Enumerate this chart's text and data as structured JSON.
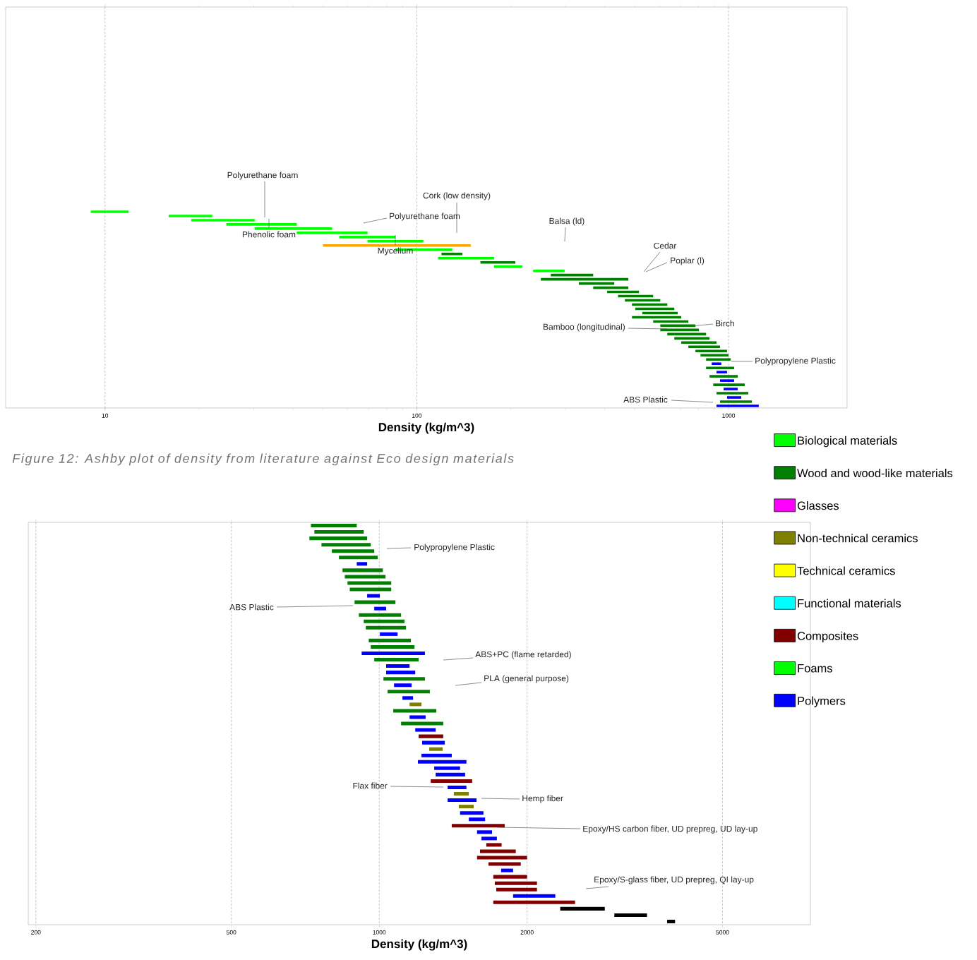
{
  "chart_data": [
    {
      "type": "bar",
      "orientation": "horizontal",
      "log": "x",
      "xlabel": "Density (kg/m^3)",
      "xlim": [
        4.8,
        2400
      ],
      "xticks": [
        10,
        100,
        1000
      ],
      "grid": "x",
      "tick_labels": "x",
      "annotations": [
        "Polyurethane foam",
        "Phenolic foam",
        "Cork (low density)",
        "Polyurethane foam",
        "Mycelium",
        "Balsa (ld)",
        "Cedar",
        "Poplar (l)",
        "Bamboo (longitudinal)",
        "Birch",
        "Polypropylene Plastic",
        "ABS Plastic",
        "Figure 12: Ashby plot of density from literature against Eco design materials"
      ],
      "categories": [
        null,
        null,
        null,
        null,
        null,
        null,
        null,
        null,
        null,
        null,
        null,
        null,
        null,
        null,
        null,
        null,
        null,
        null,
        null,
        null,
        null,
        null,
        null,
        null,
        null,
        null,
        null,
        null,
        null,
        null,
        null,
        null,
        null,
        null,
        null,
        null,
        null,
        null,
        null,
        null,
        null,
        null,
        null,
        null,
        null,
        null,
        null,
        null,
        null,
        null,
        null,
        null,
        null,
        null,
        null,
        null,
        null,
        null,
        null,
        null,
        null,
        null,
        null,
        null,
        null,
        null,
        null,
        null,
        null,
        null,
        null,
        null,
        null,
        null,
        null,
        null,
        null,
        null,
        null,
        null,
        null,
        null,
        null,
        null,
        null,
        null,
        null,
        null,
        null,
        null,
        null,
        null,
        null,
        null,
        null
      ],
      "series": [
        {
          "color": "#00ff00",
          "base": [
            null,
            null,
            null,
            null,
            null,
            null,
            null,
            null,
            null,
            null,
            null,
            null,
            null,
            null,
            null,
            null,
            null,
            null,
            null,
            null,
            null,
            null,
            null,
            null,
            null,
            null,
            null,
            null,
            null,
            null,
            null,
            null,
            null,
            null,
            null,
            null,
            null,
            null,
            null,
            null,
            null,
            null,
            null,
            null,
            null,
            null,
            null,
            null,
            9.0,
            16.0,
            18.9,
            24.5,
            30.2,
            41.2,
            56.4,
            69.5,
            null,
            85.5,
            null,
            117,
            null,
            177,
            236,
            null,
            null,
            null,
            null,
            null,
            null,
            null,
            null,
            null,
            null,
            null,
            null,
            null,
            null,
            null,
            null,
            null,
            null,
            null,
            null,
            null,
            null,
            null,
            null,
            null,
            null,
            null,
            null,
            null,
            null,
            null,
            null
          ],
          "values": [
            null,
            null,
            null,
            null,
            null,
            null,
            null,
            null,
            null,
            null,
            null,
            null,
            null,
            null,
            null,
            null,
            null,
            null,
            null,
            null,
            null,
            null,
            null,
            null,
            null,
            null,
            null,
            null,
            null,
            null,
            null,
            null,
            null,
            null,
            null,
            null,
            null,
            null,
            null,
            null,
            null,
            null,
            null,
            null,
            null,
            null,
            null,
            null,
            2.9,
            6.1,
            11.3,
            16.7,
            23.3,
            28.3,
            29.1,
            35.5,
            null,
            44.5,
            null,
            60,
            null,
            41,
            62,
            null,
            null,
            null,
            null,
            null,
            null,
            null,
            null,
            null,
            null,
            null,
            null,
            null,
            null,
            null,
            null,
            null,
            null,
            null,
            null,
            null,
            null,
            null,
            null,
            null,
            null,
            null,
            null,
            null,
            null,
            null,
            null
          ]
        },
        {
          "color": "#ffa500",
          "base": [
            null,
            null,
            null,
            null,
            null,
            null,
            null,
            null,
            null,
            null,
            null,
            null,
            null,
            null,
            null,
            null,
            null,
            null,
            null,
            null,
            null,
            null,
            null,
            null,
            null,
            null,
            null,
            null,
            null,
            null,
            null,
            null,
            null,
            null,
            null,
            null,
            null,
            null,
            null,
            null,
            null,
            null,
            null,
            null,
            null,
            null,
            null,
            null,
            null,
            null,
            null,
            null,
            null,
            null,
            null,
            null,
            50,
            null,
            null,
            null,
            null,
            null,
            null,
            null,
            null,
            null,
            null,
            null,
            null,
            null,
            null,
            null,
            null,
            null,
            null,
            null,
            null,
            null,
            null,
            null,
            null,
            null,
            null,
            null,
            null,
            null,
            null,
            null,
            null,
            null,
            null,
            null,
            null,
            null,
            null
          ],
          "values": [
            null,
            null,
            null,
            null,
            null,
            null,
            null,
            null,
            null,
            null,
            null,
            null,
            null,
            null,
            null,
            null,
            null,
            null,
            null,
            null,
            null,
            null,
            null,
            null,
            null,
            null,
            null,
            null,
            null,
            null,
            null,
            null,
            null,
            null,
            null,
            null,
            null,
            null,
            null,
            null,
            null,
            null,
            null,
            null,
            null,
            null,
            null,
            null,
            null,
            null,
            null,
            null,
            null,
            null,
            null,
            null,
            99,
            null,
            null,
            null,
            null,
            null,
            null,
            null,
            null,
            null,
            null,
            null,
            null,
            null,
            null,
            null,
            null,
            null,
            null,
            null,
            null,
            null,
            null,
            null,
            null,
            null,
            null,
            null,
            null,
            null,
            null,
            null,
            null,
            null,
            null,
            null,
            null,
            null,
            null
          ]
        },
        {
          "color": "#007f00",
          "base": [
            null,
            null,
            null,
            null,
            null,
            null,
            null,
            null,
            null,
            null,
            null,
            null,
            null,
            null,
            null,
            null,
            null,
            null,
            null,
            null,
            null,
            null,
            null,
            null,
            null,
            null,
            null,
            null,
            null,
            null,
            null,
            null,
            null,
            null,
            null,
            null,
            null,
            null,
            null,
            null,
            null,
            null,
            null,
            null,
            null,
            null,
            null,
            null,
            null,
            null,
            null,
            null,
            null,
            null,
            null,
            null,
            null,
            null,
            120,
            null,
            160,
            null,
            null,
            269,
            250,
            331,
            368,
            408,
            442,
            465,
            490,
            502,
            529,
            490,
            573,
            604,
            604,
            636,
            670,
            705,
            743,
            783,
            813,
            847,
            null,
            847,
            null,
            869,
            null,
            893,
            null,
            915,
            null,
            939,
            null
          ],
          "values": [
            null,
            null,
            null,
            null,
            null,
            null,
            null,
            null,
            null,
            null,
            null,
            null,
            null,
            null,
            null,
            null,
            null,
            null,
            null,
            null,
            null,
            null,
            null,
            null,
            null,
            null,
            null,
            null,
            null,
            null,
            null,
            null,
            null,
            null,
            null,
            null,
            null,
            null,
            null,
            null,
            null,
            null,
            null,
            null,
            null,
            null,
            null,
            null,
            null,
            null,
            null,
            null,
            null,
            null,
            null,
            null,
            null,
            null,
            20,
            null,
            47,
            null,
            null,
            99,
            227,
            99,
            109,
            108,
            131,
            139,
            146,
            168,
            158,
            215,
            170,
            179,
            199,
            211,
            199,
            210,
            196,
            206,
            187,
            169,
            null,
            195,
            null,
            201,
            null,
            234,
            null,
            242,
            null,
            249,
            null
          ]
        },
        {
          "color": "#0000ff",
          "base": [
            null,
            null,
            null,
            null,
            null,
            null,
            null,
            null,
            null,
            null,
            null,
            null,
            null,
            null,
            null,
            null,
            null,
            null,
            null,
            null,
            null,
            null,
            null,
            null,
            null,
            null,
            null,
            null,
            null,
            null,
            null,
            null,
            null,
            null,
            null,
            null,
            null,
            null,
            null,
            null,
            null,
            null,
            null,
            null,
            null,
            null,
            null,
            null,
            null,
            null,
            null,
            null,
            null,
            null,
            null,
            null,
            null,
            null,
            null,
            null,
            null,
            null,
            null,
            null,
            null,
            null,
            null,
            null,
            null,
            null,
            null,
            null,
            null,
            null,
            null,
            null,
            null,
            null,
            null,
            null,
            null,
            null,
            null,
            null,
            883,
            null,
            915,
            null,
            939,
            null,
            964,
            null,
            989,
            null,
            915
          ],
          "values": [
            null,
            null,
            null,
            null,
            null,
            null,
            null,
            null,
            null,
            null,
            null,
            null,
            null,
            null,
            null,
            null,
            null,
            null,
            null,
            null,
            null,
            null,
            null,
            null,
            null,
            null,
            null,
            null,
            null,
            null,
            null,
            null,
            null,
            null,
            null,
            null,
            null,
            null,
            null,
            null,
            null,
            null,
            null,
            null,
            null,
            null,
            null,
            null,
            null,
            null,
            null,
            null,
            null,
            null,
            null,
            null,
            null,
            null,
            null,
            null,
            null,
            null,
            null,
            null,
            null,
            null,
            null,
            null,
            null,
            null,
            null,
            null,
            null,
            null,
            null,
            null,
            null,
            null,
            null,
            null,
            null,
            null,
            null,
            null,
            65,
            null,
            74,
            null,
            103,
            null,
            106,
            null,
            109,
            null,
            335
          ]
        }
      ]
    },
    {
      "type": "bar",
      "orientation": "horizontal",
      "log": "x",
      "xlabel": "Density (kg/m^3)",
      "xlim": [
        193,
        7550
      ],
      "xticks": [
        200,
        500,
        1000,
        2000,
        5000
      ],
      "grid": "x",
      "tick_labels": "x",
      "legend": "right",
      "annotations": [
        "Polypropylene Plastic",
        "ABS Plastic",
        "ABS+PC (flame retarded)",
        "PLA (general purpose)",
        "Flax fiber",
        "Hemp fiber",
        "Epoxy/HS carbon fiber, UD prepreg, UD lay-up",
        "Epoxy/S-glass fiber, UD prepreg, QI lay-up"
      ],
      "categories": [
        null,
        null,
        null,
        null,
        null,
        null,
        null,
        null,
        null,
        null,
        null,
        null,
        null,
        null,
        null,
        null,
        null,
        null,
        null,
        null,
        null,
        null,
        null,
        null,
        null,
        null,
        null,
        null,
        null,
        null,
        null,
        null,
        null,
        null,
        null,
        null,
        null,
        null,
        null,
        null,
        null,
        null,
        null,
        null,
        null,
        null,
        null,
        null,
        null,
        null,
        null,
        null,
        null,
        null,
        null,
        null,
        null,
        null,
        null,
        null,
        null,
        null,
        null
      ],
      "series": [
        {
          "name": "Biological materials",
          "color": "#00ff00",
          "values": [
            null,
            null,
            null,
            null,
            null,
            null,
            null,
            null,
            null,
            null,
            null,
            null,
            null,
            null,
            null,
            null,
            null,
            null,
            null,
            null,
            null,
            null,
            null,
            null,
            null,
            null,
            null,
            null,
            null,
            null,
            null,
            null,
            null,
            null,
            null,
            null,
            null,
            null,
            null,
            null,
            null,
            null,
            null,
            null,
            null,
            null,
            null,
            null,
            null,
            null,
            null,
            null,
            null,
            null,
            null,
            null,
            null,
            null,
            null,
            null,
            null,
            null,
            null
          ]
        },
        {
          "name": "Wood and wood-like materials",
          "color": "#007f00",
          "base": [
            726,
            738,
            721,
            763,
            801,
            828,
            null,
            842,
            851,
            862,
            871,
            null,
            891,
            null,
            909,
            930,
            939,
            null,
            952,
            961,
            null,
            977,
            null,
            null,
            1020,
            null,
            1040,
            null,
            null,
            1068,
            null,
            1108,
            null,
            null,
            null,
            null,
            null,
            null,
            null,
            null,
            null,
            null,
            null,
            null,
            null,
            null,
            null,
            null,
            null,
            null,
            null,
            null,
            null,
            null,
            null,
            null,
            null,
            null,
            null,
            null,
            null,
            null,
            null
          ],
          "values": [
            174,
            192,
            224,
            198,
            176,
            165,
            null,
            175,
            179,
            196,
            187,
            null,
            188,
            null,
            199,
            196,
            195,
            null,
            208,
            219,
            null,
            226,
            null,
            null,
            219,
            null,
            228,
            null,
            null,
            239,
            null,
            242,
            null,
            null,
            null,
            null,
            null,
            null,
            null,
            null,
            null,
            null,
            null,
            null,
            null,
            null,
            null,
            null,
            null,
            null,
            null,
            null,
            null,
            null,
            null,
            null,
            null,
            null,
            null,
            null,
            null,
            null,
            null
          ]
        },
        {
          "name": "Glasses",
          "color": "#ff00ff",
          "values": [
            null,
            null,
            null,
            null,
            null,
            null,
            null,
            null,
            null,
            null,
            null,
            null,
            null,
            null,
            null,
            null,
            null,
            null,
            null,
            null,
            null,
            null,
            null,
            null,
            null,
            null,
            null,
            null,
            null,
            null,
            null,
            null,
            null,
            null,
            null,
            null,
            null,
            null,
            null,
            null,
            null,
            null,
            null,
            null,
            null,
            null,
            null,
            null,
            null,
            null,
            null,
            null,
            null,
            null,
            null,
            null,
            null,
            null,
            null,
            null,
            null,
            null,
            null
          ]
        },
        {
          "name": "Non-technical ceramics",
          "color": "#808000",
          "base": [
            null,
            null,
            null,
            null,
            null,
            null,
            null,
            null,
            null,
            null,
            null,
            null,
            null,
            null,
            null,
            null,
            null,
            null,
            null,
            null,
            null,
            null,
            null,
            null,
            null,
            null,
            null,
            null,
            1153,
            null,
            null,
            null,
            null,
            null,
            null,
            1264,
            null,
            null,
            null,
            null,
            null,
            null,
            1419,
            null,
            1452,
            null,
            null,
            null,
            null,
            null,
            null,
            null,
            null,
            null,
            null,
            null,
            null,
            null,
            null,
            null,
            null,
            null,
            null
          ],
          "values": [
            null,
            null,
            null,
            null,
            null,
            null,
            null,
            null,
            null,
            null,
            null,
            null,
            null,
            null,
            null,
            null,
            null,
            null,
            null,
            null,
            null,
            null,
            null,
            null,
            null,
            null,
            null,
            null,
            66,
            null,
            null,
            null,
            null,
            null,
            null,
            82,
            null,
            null,
            null,
            null,
            null,
            null,
            103,
            null,
            105,
            null,
            null,
            null,
            null,
            null,
            null,
            null,
            null,
            null,
            null,
            null,
            null,
            null,
            null,
            null,
            null,
            null,
            null
          ]
        },
        {
          "name": "Technical ceramics",
          "color": "#ffff00",
          "values": [
            null,
            null,
            null,
            null,
            null,
            null,
            null,
            null,
            null,
            null,
            null,
            null,
            null,
            null,
            null,
            null,
            null,
            null,
            null,
            null,
            null,
            null,
            null,
            null,
            null,
            null,
            null,
            null,
            null,
            null,
            null,
            null,
            null,
            null,
            null,
            null,
            null,
            null,
            null,
            null,
            null,
            null,
            null,
            null,
            null,
            null,
            null,
            null,
            null,
            null,
            null,
            null,
            null,
            null,
            null,
            null,
            null,
            null,
            null,
            null,
            null,
            null,
            null
          ]
        },
        {
          "name": "Functional materials",
          "color": "#00ffff",
          "values": [
            null,
            null,
            null,
            null,
            null,
            null,
            null,
            null,
            null,
            null,
            null,
            null,
            null,
            null,
            null,
            null,
            null,
            null,
            null,
            null,
            null,
            null,
            null,
            null,
            null,
            null,
            null,
            null,
            null,
            null,
            null,
            null,
            null,
            null,
            null,
            null,
            null,
            null,
            null,
            null,
            null,
            null,
            null,
            null,
            null,
            null,
            null,
            null,
            null,
            null,
            null,
            null,
            null,
            null,
            null,
            null,
            null,
            null,
            null,
            null,
            null,
            null,
            null
          ]
        },
        {
          "name": "Composites",
          "color": "#800000",
          "base": [
            null,
            null,
            null,
            null,
            null,
            null,
            null,
            null,
            null,
            null,
            null,
            null,
            null,
            null,
            null,
            null,
            null,
            null,
            null,
            null,
            null,
            null,
            null,
            null,
            null,
            null,
            null,
            null,
            null,
            null,
            null,
            null,
            null,
            1203,
            null,
            null,
            null,
            null,
            null,
            null,
            1273,
            null,
            null,
            null,
            null,
            null,
            null,
            1405,
            null,
            null,
            1652,
            1604,
            1582,
            1669,
            null,
            1707,
            1719,
            1731,
            null,
            1707,
            null,
            null,
            null
          ],
          "values": [
            null,
            null,
            null,
            null,
            null,
            null,
            null,
            null,
            null,
            null,
            null,
            null,
            null,
            null,
            null,
            null,
            null,
            null,
            null,
            null,
            null,
            null,
            null,
            null,
            null,
            null,
            null,
            null,
            null,
            null,
            null,
            null,
            null,
            147,
            null,
            null,
            null,
            null,
            null,
            null,
            273,
            null,
            null,
            null,
            null,
            null,
            null,
            396,
            null,
            null,
            123,
            293,
            418,
            273,
            null,
            293,
            376,
            364,
            null,
            797,
            null,
            null,
            null
          ]
        },
        {
          "name": "Foams",
          "color": "#00ff00",
          "values": [
            null,
            null,
            null,
            null,
            null,
            null,
            null,
            null,
            null,
            null,
            null,
            null,
            null,
            null,
            null,
            null,
            null,
            null,
            null,
            null,
            null,
            null,
            null,
            null,
            null,
            null,
            null,
            null,
            null,
            null,
            null,
            null,
            null,
            null,
            null,
            null,
            null,
            null,
            null,
            null,
            null,
            null,
            null,
            null,
            null,
            null,
            null,
            null,
            null,
            null,
            null,
            null,
            null,
            null,
            null,
            null,
            null,
            null,
            null,
            null,
            null,
            null,
            null
          ]
        },
        {
          "name": "Polymers",
          "color": "#0000ff",
          "base": [
            null,
            null,
            null,
            null,
            null,
            null,
            900,
            null,
            null,
            null,
            null,
            945,
            null,
            977,
            null,
            null,
            null,
            1003,
            null,
            null,
            921,
            null,
            1033,
            1033,
            null,
            1072,
            null,
            1115,
            null,
            null,
            1153,
            null,
            1184,
            null,
            1223,
            null,
            1219,
            1199,
            1294,
            1303,
            null,
            1378,
            null,
            1378,
            null,
            1461,
            1522,
            null,
            1582,
            1615,
            null,
            null,
            null,
            null,
            1771,
            null,
            null,
            null,
            1873,
            null,
            null,
            null,
            null
          ],
          "values": [
            null,
            null,
            null,
            null,
            null,
            null,
            45,
            null,
            null,
            null,
            null,
            58,
            null,
            56,
            null,
            null,
            null,
            87,
            null,
            null,
            318,
            null,
            120,
            151,
            null,
            92,
            null,
            57,
            null,
            null,
            90,
            null,
            119,
            null,
            137,
            null,
            186,
            306,
            167,
            193,
            null,
            127,
            null,
            200,
            null,
            169,
            121,
            null,
            115,
            121,
            null,
            null,
            null,
            null,
            102,
            null,
            null,
            null,
            410,
            null,
            null,
            null,
            null
          ]
        },
        {
          "color": "#000000",
          "base": [
            null,
            null,
            null,
            null,
            null,
            null,
            null,
            null,
            null,
            null,
            null,
            null,
            null,
            null,
            null,
            null,
            null,
            null,
            null,
            null,
            null,
            null,
            null,
            null,
            null,
            null,
            null,
            null,
            null,
            null,
            null,
            null,
            null,
            null,
            null,
            null,
            null,
            null,
            null,
            null,
            null,
            null,
            null,
            null,
            null,
            null,
            null,
            null,
            null,
            null,
            null,
            null,
            null,
            null,
            null,
            null,
            null,
            null,
            null,
            null,
            2336,
            3011,
            3857
          ],
          "values": [
            null,
            null,
            null,
            null,
            null,
            null,
            null,
            null,
            null,
            null,
            null,
            null,
            null,
            null,
            null,
            null,
            null,
            null,
            null,
            null,
            null,
            null,
            null,
            null,
            null,
            null,
            null,
            null,
            null,
            null,
            null,
            null,
            null,
            null,
            null,
            null,
            null,
            null,
            null,
            null,
            null,
            null,
            null,
            null,
            null,
            null,
            null,
            null,
            null,
            null,
            null,
            null,
            null,
            null,
            null,
            null,
            null,
            null,
            null,
            null,
            543,
            498,
            145
          ]
        }
      ]
    }
  ]
}
